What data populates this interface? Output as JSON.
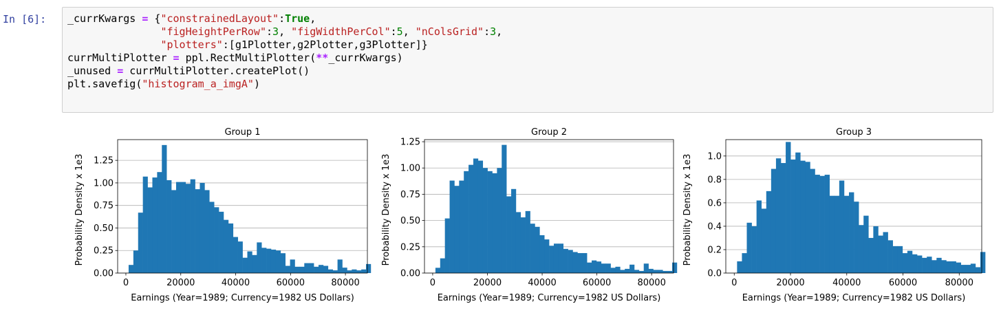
{
  "cell": {
    "prompt": "In [6]:",
    "code_lines": [
      [
        {
          "t": "_currKwargs "
        },
        {
          "t": "=",
          "c": "op"
        },
        {
          "t": " {"
        },
        {
          "t": "\"constrainedLayout\"",
          "c": "str"
        },
        {
          "t": ":"
        },
        {
          "t": "True",
          "c": "kw"
        },
        {
          "t": ","
        }
      ],
      [
        {
          "t": "               "
        },
        {
          "t": "\"figHeightPerRow\"",
          "c": "str"
        },
        {
          "t": ":"
        },
        {
          "t": "3",
          "c": "num"
        },
        {
          "t": ", "
        },
        {
          "t": "\"figWidthPerCol\"",
          "c": "str"
        },
        {
          "t": ":"
        },
        {
          "t": "5",
          "c": "num"
        },
        {
          "t": ", "
        },
        {
          "t": "\"nColsGrid\"",
          "c": "str"
        },
        {
          "t": ":"
        },
        {
          "t": "3",
          "c": "num"
        },
        {
          "t": ","
        }
      ],
      [
        {
          "t": "               "
        },
        {
          "t": "\"plotters\"",
          "c": "str"
        },
        {
          "t": ":[g1Plotter,g2Plotter,g3Plotter]}"
        }
      ],
      [
        {
          "t": "currMultiPlotter "
        },
        {
          "t": "=",
          "c": "op"
        },
        {
          "t": " ppl.RectMultiPlotter("
        },
        {
          "t": "**",
          "c": "op"
        },
        {
          "t": "_currKwargs)"
        }
      ],
      [
        {
          "t": "_unused "
        },
        {
          "t": "=",
          "c": "op"
        },
        {
          "t": " currMultiPlotter.createPlot()"
        }
      ],
      [
        {
          "t": "plt.savefig("
        },
        {
          "t": "\"histogram_a_imgA\"",
          "c": "str"
        },
        {
          "t": ")"
        }
      ]
    ]
  },
  "chart_data": [
    {
      "type": "bar",
      "title": "Group 1",
      "xlabel": "Earnings (Year=1989; Currency=1982 US Dollars)",
      "ylabel": "Probability Density x 1e3",
      "xlim": [
        -3000,
        88000
      ],
      "ylim": [
        0,
        1.48
      ],
      "xticks": [
        0,
        20000,
        40000,
        60000,
        80000
      ],
      "yticks": [
        0.0,
        0.25,
        0.5,
        0.75,
        1.0,
        1.25
      ],
      "ytick_labels": [
        "0.00",
        "0.25",
        "0.50",
        "0.75",
        "1.00",
        "1.25"
      ],
      "grid": "y",
      "color": "#1f77b4",
      "bin_start": 1000,
      "bin_width": 1730,
      "values": [
        0.09,
        0.25,
        0.67,
        1.07,
        0.95,
        1.06,
        1.12,
        1.42,
        1.03,
        0.92,
        1.01,
        1.01,
        0.99,
        1.04,
        0.93,
        1.0,
        0.92,
        0.79,
        0.73,
        0.68,
        0.59,
        0.55,
        0.4,
        0.35,
        0.17,
        0.24,
        0.2,
        0.34,
        0.28,
        0.27,
        0.26,
        0.25,
        0.22,
        0.08,
        0.15,
        0.07,
        0.07,
        0.11,
        0.11,
        0.07,
        0.09,
        0.08,
        0.04,
        0.03,
        0.15,
        0.06,
        0.03,
        0.04,
        0.03,
        0.04,
        0.1
      ]
    },
    {
      "type": "bar",
      "title": "Group 2",
      "xlabel": "Earnings (Year=1989; Currency=1982 US Dollars)",
      "ylabel": "Probability Density x 1e3",
      "xlim": [
        -3000,
        88000
      ],
      "ylim": [
        0,
        1.27
      ],
      "xticks": [
        0,
        20000,
        40000,
        60000,
        80000
      ],
      "yticks": [
        0.0,
        0.25,
        0.5,
        0.75,
        1.0,
        1.25
      ],
      "ytick_labels": [
        "0.00",
        "0.25",
        "0.50",
        "0.75",
        "1.00",
        "1.25"
      ],
      "grid": "y",
      "color": "#1f77b4",
      "bin_start": 1000,
      "bin_width": 1730,
      "values": [
        0.05,
        0.14,
        0.52,
        0.88,
        0.83,
        0.88,
        0.97,
        1.03,
        1.09,
        1.07,
        1.0,
        0.97,
        0.95,
        1.0,
        1.22,
        0.73,
        0.8,
        0.58,
        0.53,
        0.59,
        0.47,
        0.44,
        0.36,
        0.32,
        0.26,
        0.28,
        0.28,
        0.23,
        0.22,
        0.2,
        0.19,
        0.19,
        0.1,
        0.12,
        0.11,
        0.09,
        0.09,
        0.05,
        0.06,
        0.03,
        0.04,
        0.08,
        0.03,
        0.02,
        0.09,
        0.04,
        0.03,
        0.03,
        0.02,
        0.02,
        0.1
      ]
    },
    {
      "type": "bar",
      "title": "Group 3",
      "xlabel": "Earnings (Year=1989; Currency=1982 US Dollars)",
      "ylabel": "Probability Density x 1e3",
      "xlim": [
        -3000,
        88000
      ],
      "ylim": [
        0,
        1.14
      ],
      "xticks": [
        0,
        20000,
        40000,
        60000,
        80000
      ],
      "yticks": [
        0.0,
        0.2,
        0.4,
        0.6,
        0.8,
        1.0
      ],
      "ytick_labels": [
        "0.0",
        "0.2",
        "0.4",
        "0.6",
        "0.8",
        "1.0"
      ],
      "grid": "y",
      "color": "#1f77b4",
      "bin_start": 1000,
      "bin_width": 1730,
      "values": [
        0.1,
        0.17,
        0.43,
        0.4,
        0.62,
        0.55,
        0.7,
        0.89,
        0.98,
        0.94,
        1.12,
        0.97,
        1.03,
        0.96,
        0.95,
        0.89,
        0.84,
        0.83,
        0.84,
        0.66,
        0.66,
        0.79,
        0.66,
        0.69,
        0.61,
        0.41,
        0.49,
        0.3,
        0.4,
        0.32,
        0.35,
        0.28,
        0.23,
        0.23,
        0.17,
        0.19,
        0.16,
        0.15,
        0.13,
        0.14,
        0.11,
        0.13,
        0.11,
        0.1,
        0.1,
        0.09,
        0.07,
        0.07,
        0.08,
        0.05,
        0.18
      ]
    }
  ]
}
